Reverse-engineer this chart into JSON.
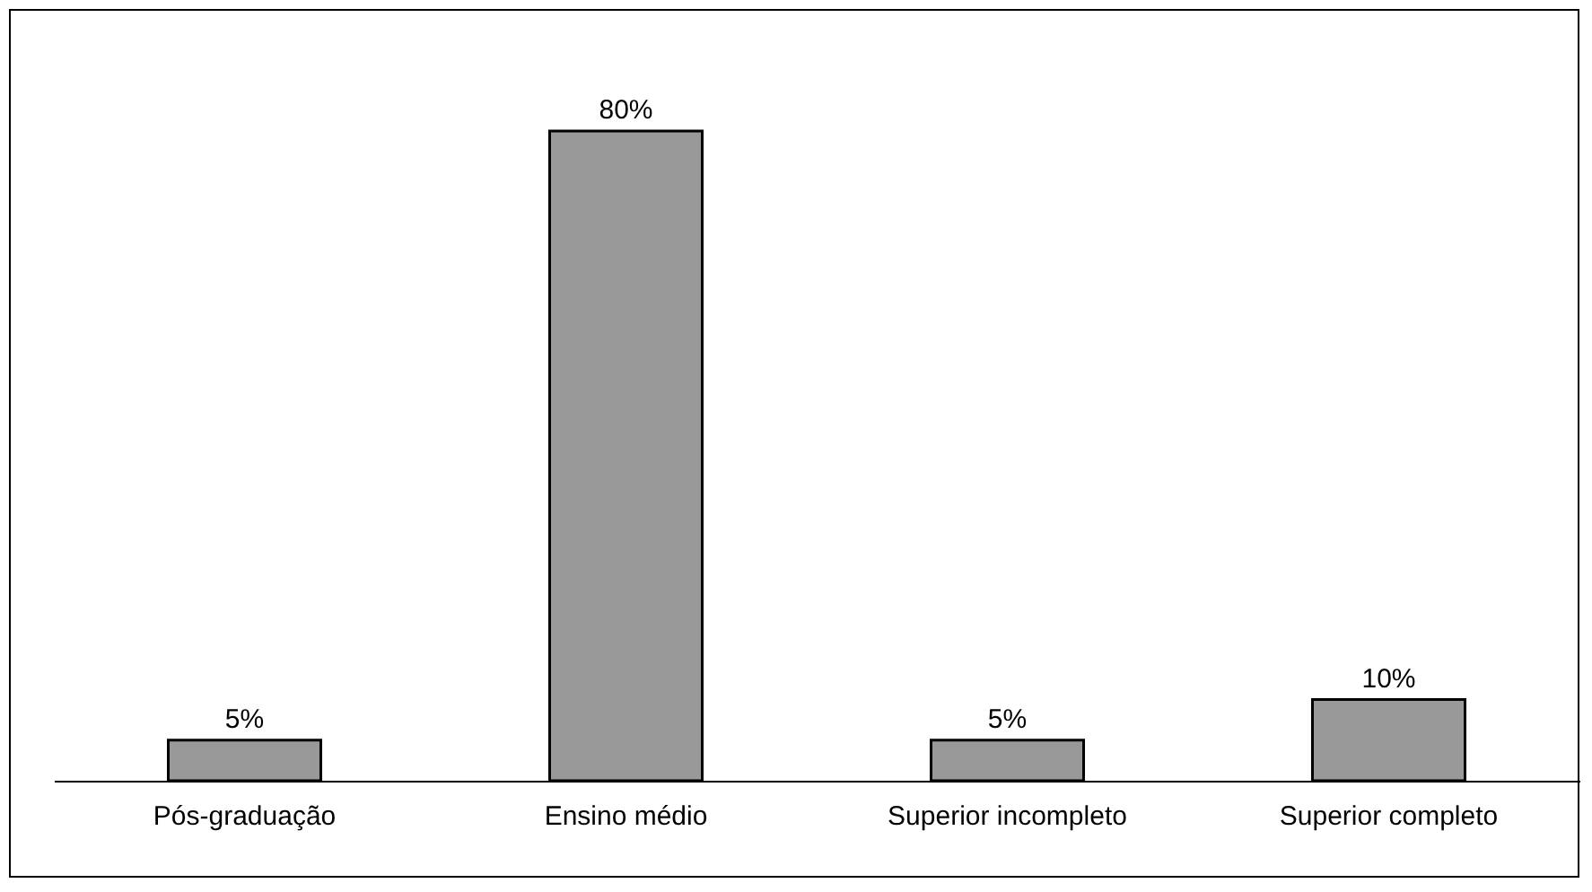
{
  "chart_data": {
    "type": "bar",
    "categories": [
      "Pós-graduação",
      "Ensino médio",
      "Superior incompleto",
      "Superior completo"
    ],
    "values": [
      5,
      80,
      5,
      10
    ],
    "color": "#999999",
    "value_labels": [
      "5%",
      "80%",
      "5%",
      "10%"
    ],
    "grid": false
  }
}
